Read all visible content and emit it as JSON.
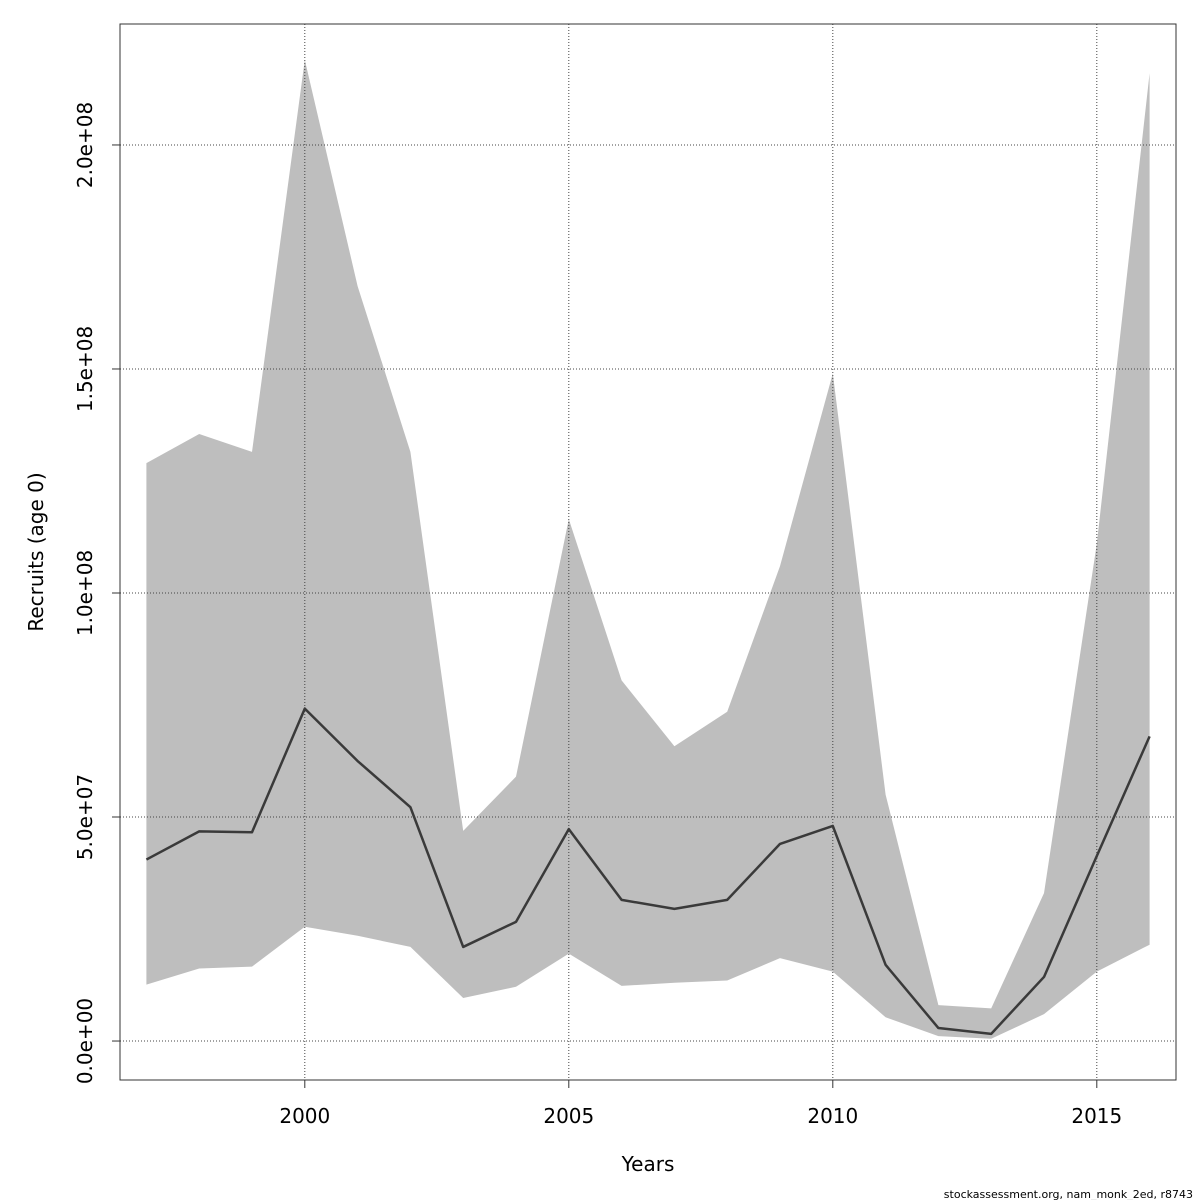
{
  "chart_data": {
    "type": "line",
    "xlabel": "Years",
    "ylabel": "Recruits (age 0)",
    "xlim": [
      1996.5,
      2016.5
    ],
    "ylim": [
      -8700000,
      227000000
    ],
    "x_ticks": [
      2000,
      2005,
      2010,
      2015
    ],
    "x_tick_labels": [
      "2000",
      "2005",
      "2010",
      "2015"
    ],
    "y_ticks": [
      0,
      50000000,
      100000000,
      150000000,
      200000000
    ],
    "y_tick_labels": [
      "0.0e+00",
      "5.0e+07",
      "1.0e+08",
      "1.5e+08",
      "2.0e+08"
    ],
    "grid": true,
    "x": [
      1997,
      1998,
      1999,
      2000,
      2001,
      2002,
      2003,
      2004,
      2005,
      2006,
      2007,
      2008,
      2009,
      2010,
      2011,
      2012,
      2013,
      2014,
      2015,
      2016
    ],
    "series": [
      {
        "values": [
          40500000,
          46800000,
          46600000,
          74200000,
          62500000,
          52200000,
          21000000,
          26600000,
          47300000,
          31500000,
          29500000,
          31500000,
          44000000,
          48000000,
          17000000,
          2900000,
          1600000,
          14300000,
          41300000,
          68000000
        ],
        "color": "#3a3a3a"
      }
    ],
    "band": {
      "upper": [
        129000000,
        135500000,
        131500000,
        219000000,
        168500000,
        131500000,
        46900000,
        59000000,
        116500000,
        80500000,
        65800000,
        73500000,
        106000000,
        149000000,
        55000000,
        8000000,
        7300000,
        33000000,
        111000000,
        216000000
      ],
      "lower": [
        12600000,
        16200000,
        16600000,
        25500000,
        23500000,
        21000000,
        9600000,
        12100000,
        19500000,
        12300000,
        13000000,
        13500000,
        18500000,
        15500000,
        5300000,
        1100000,
        500000,
        6000000,
        15500000,
        21500000
      ],
      "color": "#bebebe"
    }
  },
  "footer_text": "stockassessment.org, nam_monk_2ed, r8743"
}
